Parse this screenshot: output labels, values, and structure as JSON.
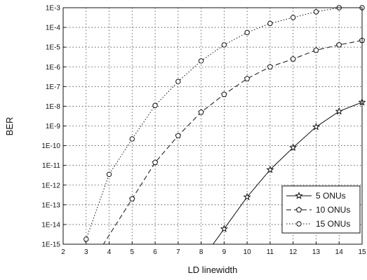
{
  "chart_data": {
    "type": "line",
    "title": "",
    "xlabel": "LD linewidth",
    "ylabel": "BER",
    "x_ticks": [
      "2",
      "3",
      "4",
      "5",
      "6",
      "7",
      "8",
      "9",
      "10",
      "11",
      "12",
      "13",
      "14",
      "15"
    ],
    "y_ticks": [
      "1E-15",
      "1E-14",
      "1E-13",
      "1E-12",
      "1E-11",
      "1E-10",
      "1E-9",
      "1E-8",
      "1E-7",
      "1E-6",
      "1E-5",
      "1E-4",
      "1E-3"
    ],
    "xlim": [
      2,
      15
    ],
    "ylim": [
      1e-15,
      0.001
    ],
    "y_scale": "log",
    "grid": true,
    "legend_position": "bottom-right",
    "series": [
      {
        "name": "5 ONUs",
        "marker": "star",
        "line_style": "solid",
        "x": [
          9,
          10,
          11,
          12,
          13,
          14,
          15
        ],
        "y": [
          6e-15,
          2.5e-13,
          6e-12,
          8e-11,
          9e-10,
          5.5e-09,
          1.6e-08
        ]
      },
      {
        "name": "10 ONUs",
        "marker": "pentagon",
        "line_style": "dashed",
        "x": [
          5,
          6,
          7,
          8,
          9,
          10,
          11,
          12,
          13,
          14,
          15
        ],
        "y": [
          2e-13,
          1.4e-11,
          3.2e-10,
          5e-09,
          4e-08,
          2.5e-07,
          1e-06,
          2.5e-06,
          7e-06,
          1.3e-05,
          2.2e-05
        ]
      },
      {
        "name": "15 ONUs",
        "marker": "circle",
        "line_style": "dotted",
        "x": [
          3,
          4,
          5,
          6,
          7,
          8,
          9,
          10,
          11,
          12,
          13,
          14,
          15
        ],
        "y": [
          1.8e-15,
          3.5e-12,
          2.2e-10,
          1.1e-08,
          1.8e-07,
          2e-06,
          1.3e-05,
          5.5e-05,
          0.00016,
          0.00032,
          0.00062,
          0.001,
          0.0016
        ]
      }
    ]
  }
}
